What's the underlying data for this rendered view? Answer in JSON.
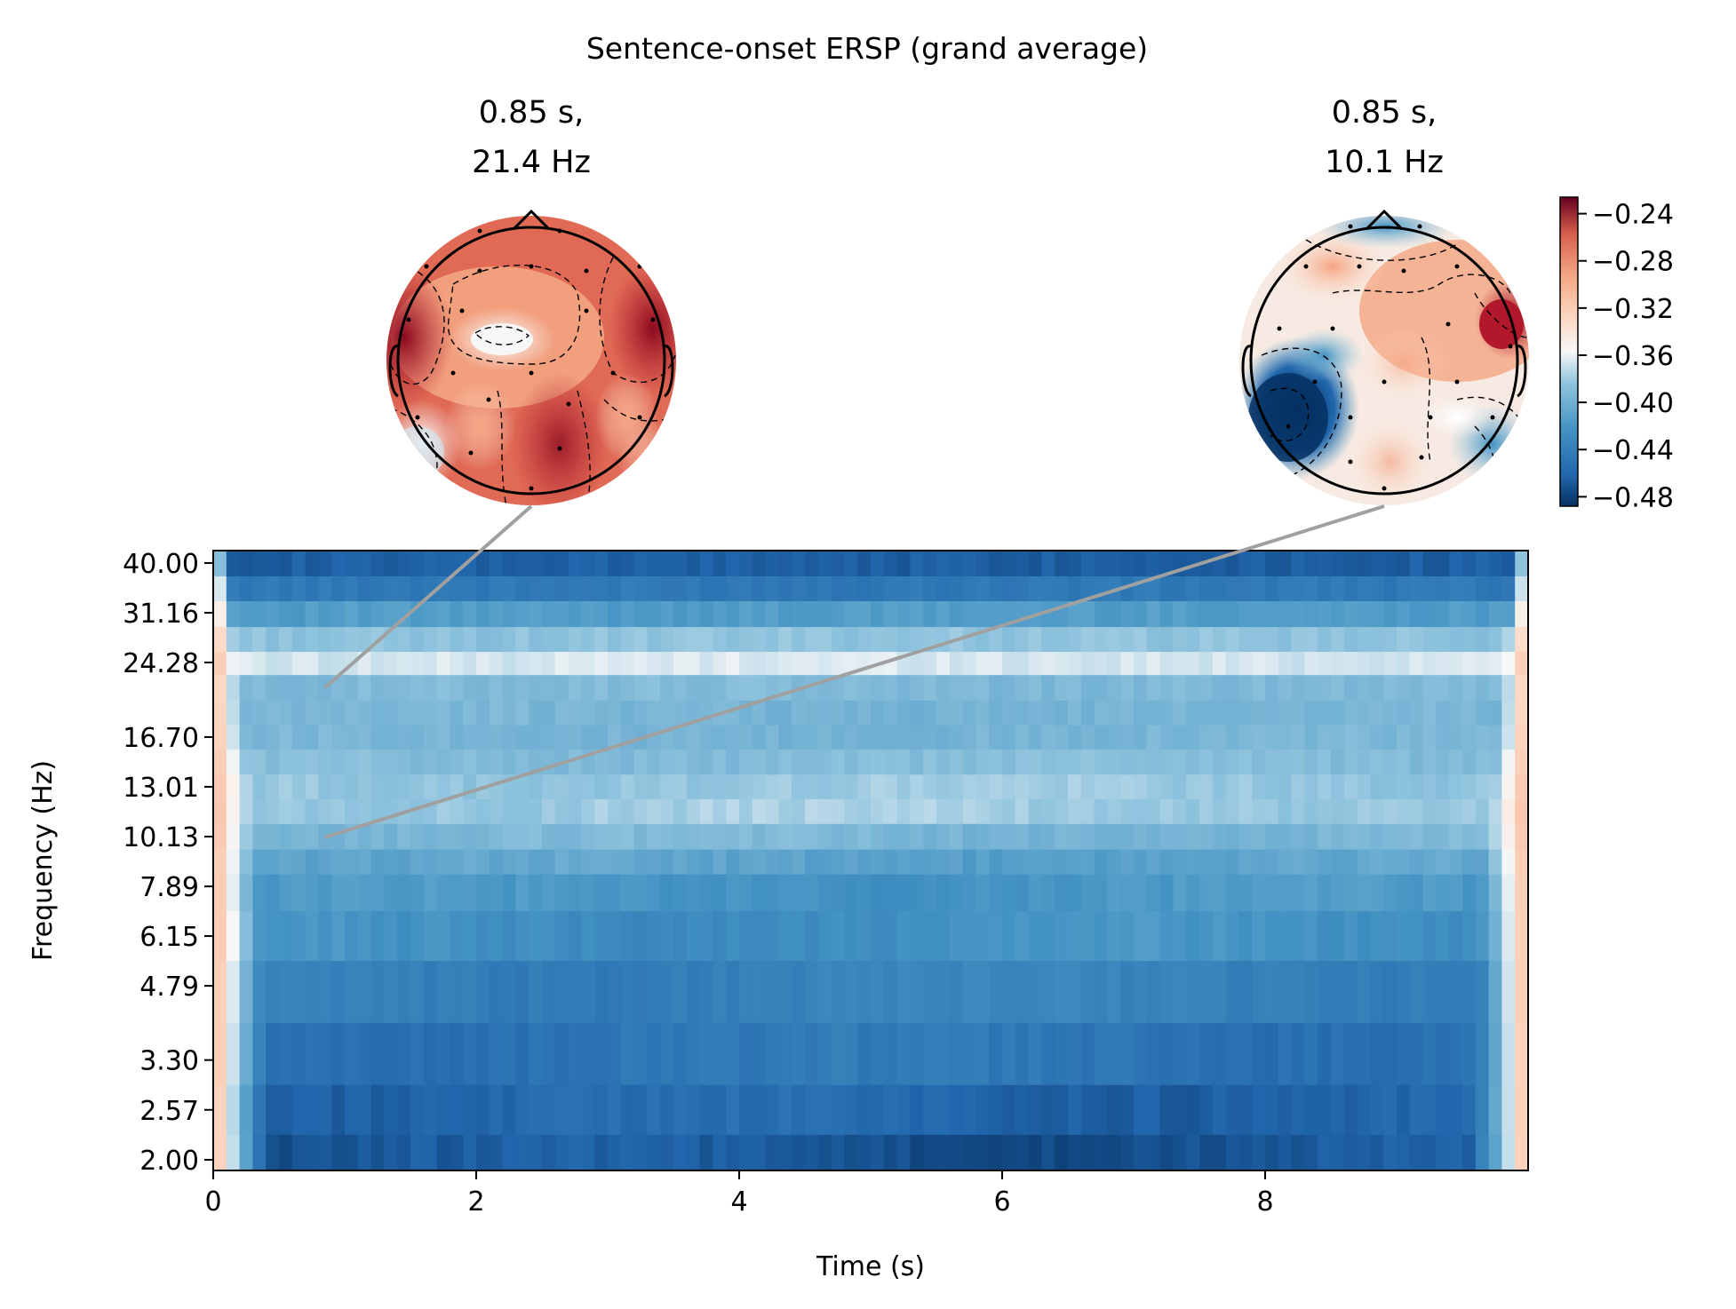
{
  "figure": {
    "title": "Sentence-onset ERSP (grand average)"
  },
  "chart_data": {
    "type": "heatmap",
    "title": "Sentence-onset ERSP (grand average)",
    "xlabel": "Time (s)",
    "ylabel": "Frequency (Hz)",
    "xlim": [
      0,
      10
    ],
    "ylim": [
      2.0,
      40.0
    ],
    "y_scale": "log",
    "x_ticks": [
      "0",
      "2",
      "4",
      "6",
      "8"
    ],
    "x_tick_values": [
      0,
      2,
      4,
      6,
      8
    ],
    "y_ticks": [
      "40.00",
      "31.16",
      "24.28",
      "16.70",
      "13.01",
      "10.13",
      "7.89",
      "6.15",
      "4.79",
      "3.30",
      "2.57",
      "2.00"
    ],
    "y_tick_values": [
      40.0,
      31.16,
      24.28,
      16.7,
      13.01,
      10.13,
      7.89,
      6.15,
      4.79,
      3.3,
      2.57,
      2.0
    ],
    "colormap": "RdBu_r",
    "colorbar": {
      "ticks": [
        "−0.24",
        "−0.28",
        "−0.32",
        "−0.36",
        "−0.40",
        "−0.44",
        "−0.48"
      ],
      "tick_values": [
        -0.24,
        -0.28,
        -0.32,
        -0.36,
        -0.4,
        -0.44,
        -0.48
      ],
      "range": [
        -0.488,
        -0.226
      ]
    },
    "frequency_band_values": [
      {
        "freq": 40.0,
        "value": -0.465
      },
      {
        "freq": 35.0,
        "value": -0.445
      },
      {
        "freq": 31.16,
        "value": -0.415
      },
      {
        "freq": 27.0,
        "value": -0.385
      },
      {
        "freq": 24.28,
        "value": -0.365
      },
      {
        "freq": 21.4,
        "value": -0.392
      },
      {
        "freq": 18.8,
        "value": -0.396
      },
      {
        "freq": 16.7,
        "value": -0.396
      },
      {
        "freq": 14.7,
        "value": -0.39
      },
      {
        "freq": 13.01,
        "value": -0.382
      },
      {
        "freq": 11.5,
        "value": -0.38
      },
      {
        "freq": 10.13,
        "value": -0.395
      },
      {
        "freq": 8.9,
        "value": -0.41
      },
      {
        "freq": 7.89,
        "value": -0.42
      },
      {
        "freq": 6.15,
        "value": -0.425
      },
      {
        "freq": 4.79,
        "value": -0.438
      },
      {
        "freq": 3.3,
        "value": -0.448
      },
      {
        "freq": 2.57,
        "value": -0.46
      },
      {
        "freq": 2.0,
        "value": -0.47
      }
    ],
    "edge_value": -0.3,
    "topomaps": [
      {
        "time": 0.85,
        "freq": 21.4,
        "title_line1": "0.85 s,",
        "title_line2": "21.4 Hz"
      },
      {
        "time": 0.85,
        "freq": 10.1,
        "title_line1": "0.85 s,",
        "title_line2": "10.1 Hz"
      }
    ]
  },
  "colors": {
    "connector": "#a0a0a0",
    "axis": "#000000"
  }
}
